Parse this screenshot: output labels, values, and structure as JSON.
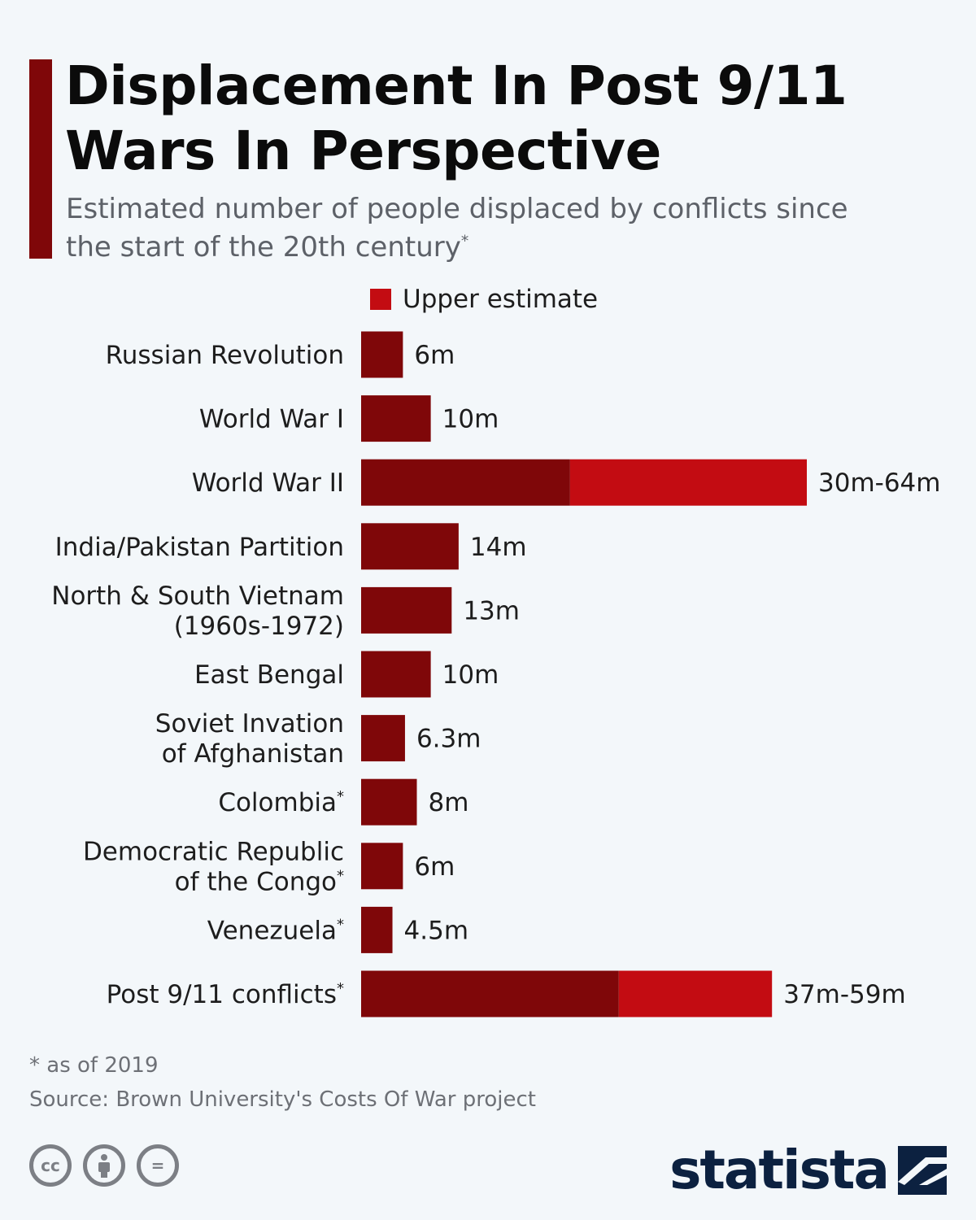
{
  "header": {
    "title": "Displacement In Post 9/11 Wars In Perspective",
    "subtitle": "Estimated number of people displaced by conflicts since the start of the 20th century",
    "subtitle_mark": "*"
  },
  "legend": {
    "label": "Upper estimate"
  },
  "colors": {
    "accent": "#7f0709",
    "base_bar": "#7f0709",
    "upper_bar": "#c30c12",
    "logo": "#0c2140"
  },
  "chart_data": {
    "type": "bar",
    "orientation": "horizontal",
    "stacked": true,
    "unit": "millions",
    "xlim": [
      0,
      64
    ],
    "categories": [
      {
        "label": [
          "Russian Revolution"
        ],
        "mark": "",
        "value": 6,
        "upper": null,
        "value_label": "6m"
      },
      {
        "label": [
          "World War I"
        ],
        "mark": "",
        "value": 10,
        "upper": null,
        "value_label": "10m"
      },
      {
        "label": [
          "World War II"
        ],
        "mark": "",
        "value": 30,
        "upper": 64,
        "value_label": "30m-64m"
      },
      {
        "label": [
          "India/Pakistan Partition"
        ],
        "mark": "",
        "value": 14,
        "upper": null,
        "value_label": "14m"
      },
      {
        "label": [
          "North & South Vietnam",
          "(1960s-1972)"
        ],
        "mark": "",
        "value": 13,
        "upper": null,
        "value_label": "13m"
      },
      {
        "label": [
          "East Bengal"
        ],
        "mark": "",
        "value": 10,
        "upper": null,
        "value_label": "10m"
      },
      {
        "label": [
          "Soviet Invation",
          "of Afghanistan"
        ],
        "mark": "",
        "value": 6.3,
        "upper": null,
        "value_label": "6.3m"
      },
      {
        "label": [
          "Colombia"
        ],
        "mark": "*",
        "value": 8,
        "upper": null,
        "value_label": "8m"
      },
      {
        "label": [
          "Democratic Republic",
          "of the Congo"
        ],
        "mark": "*",
        "value": 6,
        "upper": null,
        "value_label": "6m"
      },
      {
        "label": [
          "Venezuela"
        ],
        "mark": "*",
        "value": 4.5,
        "upper": null,
        "value_label": "4.5m"
      },
      {
        "label": [
          "Post 9/11 conflicts"
        ],
        "mark": "*",
        "value": 37,
        "upper": 59,
        "value_label": "37m-59m"
      }
    ]
  },
  "footer": {
    "footnote": "* as of 2019",
    "source": "Source: Brown University's Costs Of War project",
    "license_icons": [
      {
        "name": "creative-commons-icon",
        "text": "cc"
      },
      {
        "name": "attribution-icon",
        "text": ""
      },
      {
        "name": "no-derivatives-icon",
        "text": "="
      }
    ],
    "logo_text": "statista"
  }
}
